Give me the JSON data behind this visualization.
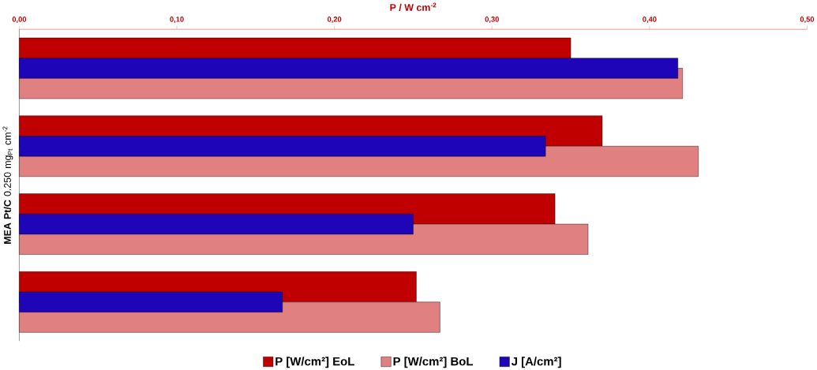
{
  "chart_data": {
    "type": "bar",
    "orientation": "horizontal",
    "xlabel": "P / W cm$^{-2}$",
    "ylabel": "**MEA Pt/C** 0.250 mg$_{Pt}$ cm$^{-2}$",
    "categories": [
      null,
      null,
      null,
      null
    ],
    "series": [
      {
        "name": "P [W/cm²] EoL",
        "color": "#c00000",
        "values": [
          0.35,
          0.37,
          0.34,
          0.252
        ]
      },
      {
        "name": "P [W/cm²] BoL",
        "color": "#e08080",
        "values": [
          0.421,
          0.431,
          0.361,
          0.267
        ]
      },
      {
        "name": "J [A/cm²]",
        "color": "#1e05b8",
        "values": [
          0.418,
          0.334,
          0.25,
          0.167
        ]
      }
    ],
    "xlim": [
      0,
      0.5
    ],
    "xticks": [
      {
        "value": 0,
        "label": "0,00"
      },
      {
        "value": 0.1,
        "label": "0,10"
      },
      {
        "value": 0.2,
        "label": "0,20"
      },
      {
        "value": 0.3,
        "label": "0,30"
      },
      {
        "value": 0.4,
        "label": "0,40"
      },
      {
        "value": 0.5,
        "label": "0,50"
      }
    ],
    "tick_labels": "x",
    "legend": "bottom"
  }
}
